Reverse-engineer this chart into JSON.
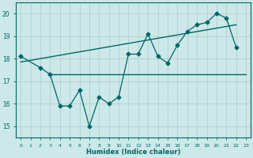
{
  "xlabel": "Humidex (Indice chaleur)",
  "bg_color": "#cce8e8",
  "grid_color": "#aacccc",
  "line_color": "#006666",
  "xlim": [
    -0.5,
    23.5
  ],
  "ylim": [
    14.5,
    20.5
  ],
  "xticks": [
    0,
    1,
    2,
    3,
    4,
    5,
    6,
    7,
    8,
    9,
    10,
    11,
    12,
    13,
    14,
    15,
    16,
    17,
    18,
    19,
    20,
    21,
    22,
    23
  ],
  "yticks": [
    15,
    16,
    17,
    18,
    19,
    20
  ],
  "data_x": [
    0,
    2,
    3,
    4,
    5,
    6,
    7,
    8,
    9,
    10,
    11,
    12,
    13,
    14,
    15,
    16,
    17,
    18,
    19,
    20,
    21,
    22
  ],
  "data_y": [
    18.1,
    17.6,
    17.3,
    15.9,
    15.9,
    16.6,
    15.0,
    16.3,
    16.0,
    16.3,
    18.2,
    18.2,
    19.1,
    18.1,
    17.8,
    18.6,
    19.2,
    19.5,
    19.6,
    20.0,
    19.8,
    18.5
  ],
  "flat_line_x": [
    3,
    23
  ],
  "flat_line_y": [
    17.3,
    17.3
  ],
  "trend_x": [
    0,
    22
  ],
  "trend_y": [
    17.85,
    19.5
  ]
}
